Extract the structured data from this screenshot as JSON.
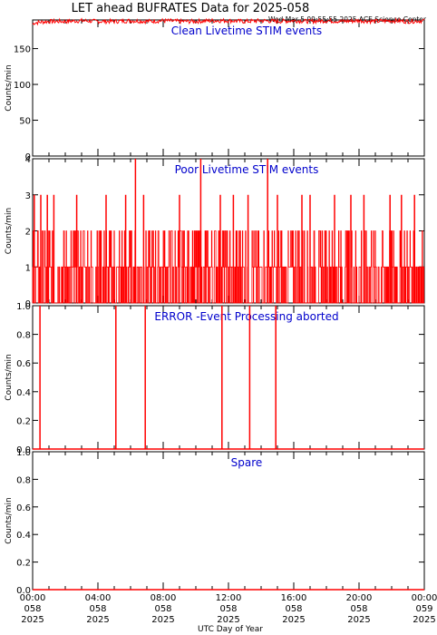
{
  "title": "LET ahead BUFRATES Data for 2025-058",
  "timestamp": "Wed Mar  5 09:55:55 2025 ACE Science Center",
  "xlabel": "UTC Day of Year",
  "colors": {
    "data": "#ff0000",
    "label": "#0000cc",
    "axis": "#000000",
    "background": "#ffffff"
  },
  "chart_data": [
    {
      "type": "line",
      "label": "Clean Livetime STIM events",
      "ylabel": "Counts/min",
      "ylim": [
        0,
        190
      ],
      "yticks": [
        0,
        50,
        100,
        150
      ],
      "xlim": [
        0,
        24
      ],
      "series": [
        {
          "x": [
            0,
            0.1,
            0.5,
            1,
            2,
            3,
            4,
            5,
            6,
            7,
            8,
            9,
            10,
            11,
            12,
            13,
            14,
            15,
            16,
            17,
            18,
            19,
            20,
            21,
            22,
            23,
            24
          ],
          "values": [
            184,
            186,
            187,
            188,
            188,
            189,
            188,
            188,
            189,
            188,
            189,
            188,
            188,
            189,
            189,
            188,
            189,
            188,
            189,
            188,
            189,
            188,
            189,
            188,
            189,
            188,
            189
          ]
        }
      ]
    },
    {
      "type": "line",
      "label": "Poor Livetime STIM events",
      "ylabel": "Counts/min",
      "ylim": [
        0,
        4
      ],
      "yticks": [
        0,
        1,
        2,
        3,
        4
      ],
      "xlim": [
        0,
        24
      ],
      "series": [
        {
          "x": [
            0.1,
            0.5,
            0.9,
            1.3,
            2.7,
            4.5,
            5.7,
            6.3,
            6.8,
            9.0,
            10.3,
            11.5,
            12.3,
            13.2,
            14.4,
            15.0,
            16.5,
            17.0,
            18.5,
            19.5,
            20.3,
            21.9,
            22.6,
            23.4
          ],
          "values": [
            3,
            3,
            3,
            3,
            3,
            3,
            3,
            4,
            3,
            3,
            4,
            3,
            3,
            3,
            4,
            3,
            3,
            3,
            3,
            3,
            3,
            3,
            3,
            3
          ]
        }
      ]
    },
    {
      "type": "line",
      "label": "ERROR -Event Processing aborted",
      "ylabel": "Counts/min",
      "ylim": [
        0,
        1
      ],
      "yticks": [
        0.0,
        0.2,
        0.4,
        0.6,
        0.8,
        1.0
      ],
      "xlim": [
        0,
        24
      ],
      "series": [
        {
          "x": [
            0.45,
            5.1,
            6.9,
            11.6,
            13.3,
            14.9
          ],
          "values": [
            1,
            1,
            1,
            1,
            1,
            1
          ]
        }
      ]
    },
    {
      "type": "line",
      "label": "Spare",
      "ylabel": "Counts/min",
      "ylim": [
        0,
        1
      ],
      "yticks": [
        0.0,
        0.2,
        0.4,
        0.6,
        0.8,
        1.0
      ],
      "xlim": [
        0,
        24
      ],
      "series": [
        {
          "x": [
            0,
            24
          ],
          "values": [
            0,
            0
          ]
        }
      ]
    }
  ],
  "xticks": [
    {
      "time": "00:00",
      "doy": "058",
      "year": "2025"
    },
    {
      "time": "04:00",
      "doy": "058",
      "year": "2025"
    },
    {
      "time": "08:00",
      "doy": "058",
      "year": "2025"
    },
    {
      "time": "12:00",
      "doy": "058",
      "year": "2025"
    },
    {
      "time": "16:00",
      "doy": "058",
      "year": "2025"
    },
    {
      "time": "20:00",
      "doy": "058",
      "year": "2025"
    },
    {
      "time": "00:00",
      "doy": "059",
      "year": "2025"
    }
  ]
}
